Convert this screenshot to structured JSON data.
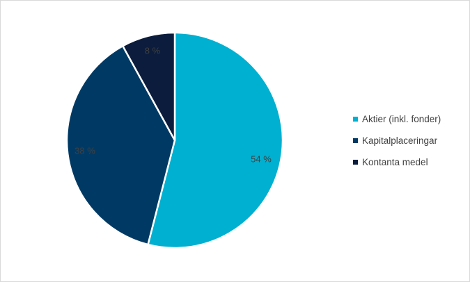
{
  "chart_data": {
    "type": "pie",
    "title": "",
    "legend_position": "right",
    "slices": [
      {
        "label": "Aktier (inkl. fonder)",
        "value": 54,
        "value_label": "54 %",
        "color": "#00b0d0"
      },
      {
        "label": "Kapitalplaceringar",
        "value": 38,
        "value_label": "38 %",
        "color": "#003a64"
      },
      {
        "label": "Kontanta medel",
        "value": 8,
        "value_label": "8 %",
        "color": "#0b1c3c"
      }
    ]
  }
}
